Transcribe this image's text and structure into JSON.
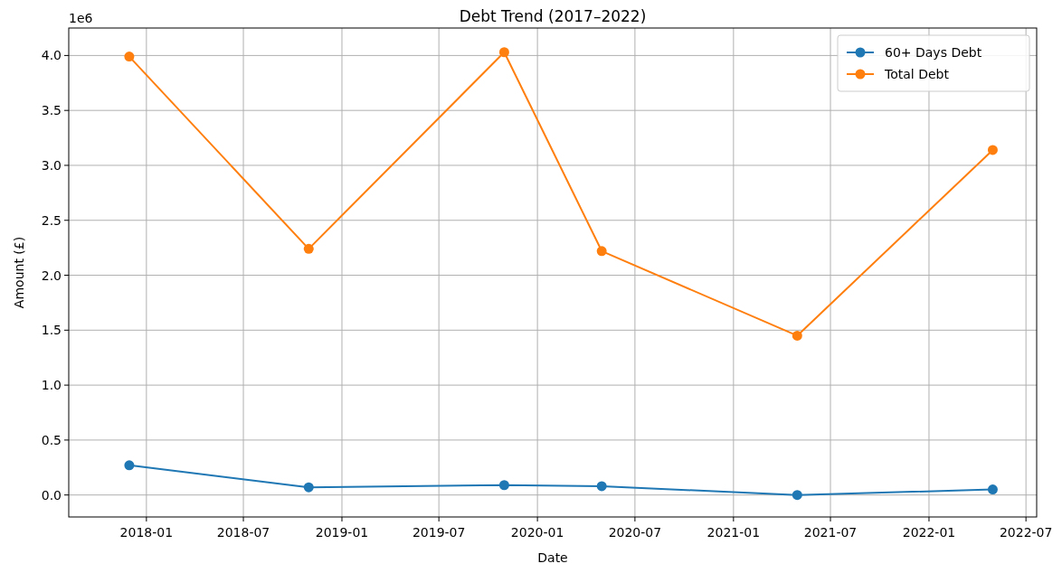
{
  "chart_data": {
    "type": "line",
    "title": "Debt Trend (2017–2022)",
    "xlabel": "Date",
    "ylabel": "Amount (£)",
    "x": [
      "2017-11-30",
      "2018-10-31",
      "2019-10-31",
      "2020-04-30",
      "2021-04-30",
      "2022-04-30"
    ],
    "series": [
      {
        "name": "60+ Days Debt",
        "color": "#1f77b4",
        "values": [
          0.27,
          0.07,
          0.09,
          0.08,
          0.0,
          0.05
        ]
      },
      {
        "name": "Total Debt",
        "color": "#ff7f0e",
        "values": [
          3.99,
          2.24,
          4.03,
          2.22,
          1.45,
          3.14
        ]
      }
    ],
    "xlim": [
      "2017-08-09",
      "2022-07-21"
    ],
    "xticks": [
      {
        "value": "2018-01-01",
        "label": "2018-01"
      },
      {
        "value": "2018-07-01",
        "label": "2018-07"
      },
      {
        "value": "2019-01-01",
        "label": "2019-01"
      },
      {
        "value": "2019-07-01",
        "label": "2019-07"
      },
      {
        "value": "2020-01-01",
        "label": "2020-01"
      },
      {
        "value": "2020-07-01",
        "label": "2020-07"
      },
      {
        "value": "2021-01-01",
        "label": "2021-01"
      },
      {
        "value": "2021-07-01",
        "label": "2021-07"
      },
      {
        "value": "2022-01-01",
        "label": "2022-01"
      },
      {
        "value": "2022-07-01",
        "label": "2022-07"
      }
    ],
    "ylim": [
      -0.2,
      4.25
    ],
    "yticks": [
      {
        "value": 0,
        "label": "0.0"
      },
      0.5,
      {
        "value": 1,
        "label": "1.0"
      },
      1.5,
      {
        "value": 2,
        "label": "2.0"
      },
      2.5,
      {
        "value": 3,
        "label": "3.0"
      },
      3.5,
      {
        "value": 4,
        "label": "4.0"
      }
    ],
    "annotations": [
      "1e6"
    ],
    "grid": true,
    "legend": "top right",
    "marker": "circle",
    "line_style": "solid"
  }
}
